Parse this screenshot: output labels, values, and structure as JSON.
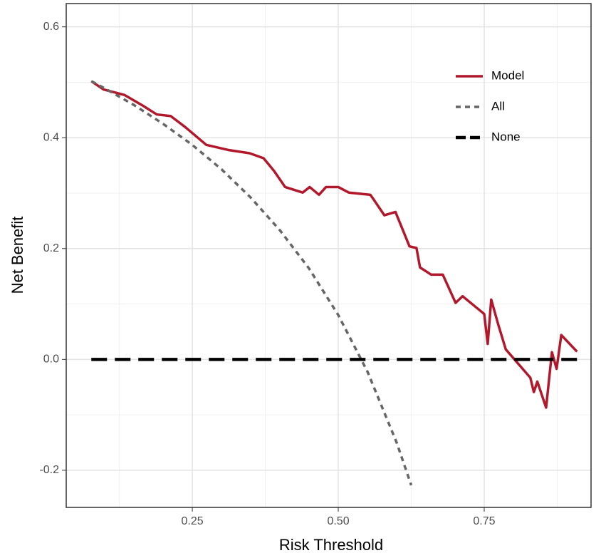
{
  "chart_data": {
    "type": "line",
    "x_label": "Risk Threshold",
    "y_label": "Net Benefit",
    "xlim": [
      0.034,
      0.933
    ],
    "ylim": [
      -0.267,
      0.642
    ],
    "xticks": [
      0.25,
      0.5,
      0.75
    ],
    "xtick_labels": [
      "0.25",
      "0.50",
      "0.75"
    ],
    "yticks": [
      {
        "value": -0.2,
        "label": "-0.2"
      },
      {
        "value": 0,
        "label": "0.0"
      },
      0.2,
      0.4,
      0.6
    ],
    "x_minor_grid": [
      0.125,
      0.375,
      0.625,
      0.875
    ],
    "y_minor_grid": [
      -0.1,
      0.1,
      0.3,
      0.5
    ],
    "grid": true,
    "legend": "top-right",
    "series": [
      {
        "name": "Model",
        "color": "#b2182b",
        "dash": "solid",
        "x": [
          0.077,
          0.098,
          0.134,
          0.165,
          0.189,
          0.213,
          0.238,
          0.274,
          0.311,
          0.348,
          0.372,
          0.39,
          0.409,
          0.439,
          0.451,
          0.467,
          0.479,
          0.5,
          0.518,
          0.555,
          0.561,
          0.579,
          0.598,
          0.622,
          0.634,
          0.64,
          0.659,
          0.679,
          0.701,
          0.713,
          0.75,
          0.756,
          0.762,
          0.774,
          0.787,
          0.829,
          0.835,
          0.841,
          0.856,
          0.866,
          0.874,
          0.882,
          0.909
        ],
        "values": [
          0.502,
          0.487,
          0.477,
          0.458,
          0.442,
          0.439,
          0.419,
          0.387,
          0.378,
          0.372,
          0.363,
          0.34,
          0.311,
          0.301,
          0.311,
          0.297,
          0.311,
          0.311,
          0.301,
          0.297,
          0.288,
          0.26,
          0.266,
          0.204,
          0.201,
          0.166,
          0.153,
          0.153,
          0.102,
          0.114,
          0.082,
          0.028,
          0.108,
          0.063,
          0.018,
          -0.033,
          -0.059,
          -0.04,
          -0.087,
          0.013,
          -0.017,
          0.044,
          0.014
        ]
      },
      {
        "name": "All",
        "color": "#666666",
        "dash": "dotted",
        "x": [
          0.077,
          0.1,
          0.15,
          0.2,
          0.25,
          0.3,
          0.35,
          0.4,
          0.45,
          0.5,
          0.55,
          0.6,
          0.625
        ],
        "values": [
          0.502,
          0.489,
          0.459,
          0.425,
          0.387,
          0.343,
          0.292,
          0.233,
          0.164,
          0.08,
          -0.022,
          -0.15,
          -0.227
        ]
      },
      {
        "name": "None",
        "color": "#000000",
        "dash": "dashed",
        "x": [
          0.077,
          0.909
        ],
        "values": [
          0,
          0
        ]
      }
    ]
  }
}
